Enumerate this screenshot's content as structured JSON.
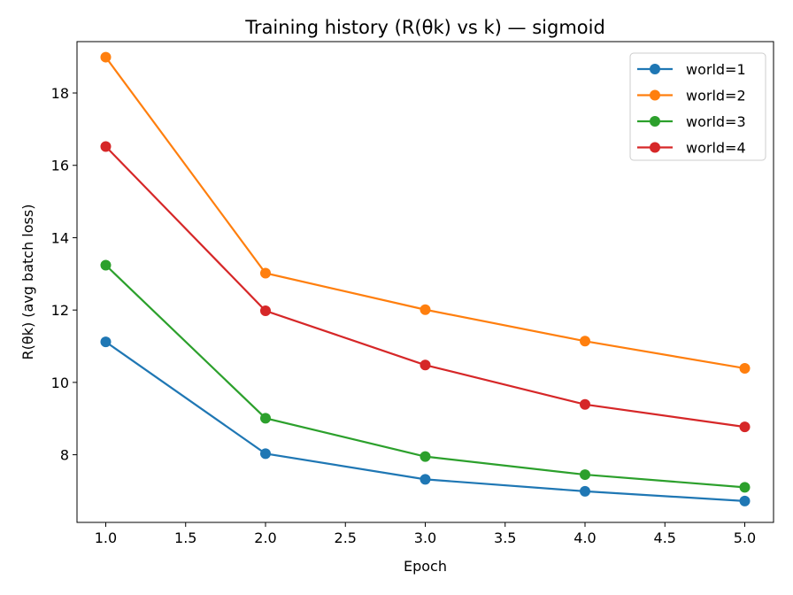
{
  "chart_data": {
    "type": "line",
    "title": "Training history (R(θk) vs k) — sigmoid",
    "xlabel": "Epoch",
    "ylabel": "R(θk)  (avg batch loss)",
    "x": [
      1.0,
      2.0,
      3.0,
      4.0,
      5.0
    ],
    "xlim": [
      0.82,
      5.18
    ],
    "ylim": [
      6.13,
      19.42
    ],
    "xticks": [
      "1.0",
      "1.5",
      "2.0",
      "2.5",
      "3.0",
      "3.5",
      "4.0",
      "4.5",
      "5.0"
    ],
    "yticks": [
      "8",
      "10",
      "12",
      "14",
      "16",
      "18"
    ],
    "grid": false,
    "legend": "top-right",
    "series": [
      {
        "name": "world=1",
        "color": "#1f77b4",
        "values": [
          11.12,
          8.03,
          7.32,
          6.99,
          6.72
        ]
      },
      {
        "name": "world=2",
        "color": "#ff7f0e",
        "values": [
          18.99,
          13.02,
          12.01,
          11.14,
          10.39
        ]
      },
      {
        "name": "world=3",
        "color": "#2ca02c",
        "values": [
          13.24,
          9.01,
          7.95,
          7.45,
          7.1
        ]
      },
      {
        "name": "world=4",
        "color": "#d62728",
        "values": [
          16.52,
          11.98,
          10.48,
          9.39,
          8.77
        ]
      }
    ]
  }
}
